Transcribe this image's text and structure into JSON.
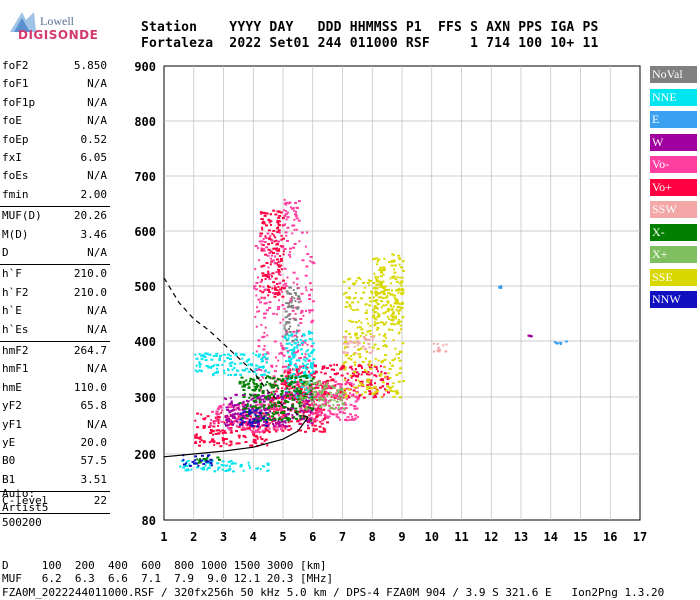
{
  "logo": {
    "line1": "Lowell",
    "line2": "DIGISONDE"
  },
  "header": {
    "line1": "Station    YYYY DAY   DDD HHMMSS P1  FFS S AXN PPS IGA PS",
    "line2": "Fortaleza  2022 Set01 244 011000 RSF     1 714 100 10+ 11"
  },
  "params": [
    {
      "name": "foF2",
      "value": "5.850"
    },
    {
      "name": "foF1",
      "value": "N/A"
    },
    {
      "name": "foF1p",
      "value": "N/A"
    },
    {
      "name": "foE",
      "value": "N/A"
    },
    {
      "name": "foEp",
      "value": "0.52"
    },
    {
      "name": "fxI",
      "value": "6.05"
    },
    {
      "name": "foEs",
      "value": "N/A"
    },
    {
      "name": "fmin",
      "value": "2.00"
    }
  ],
  "params2": [
    {
      "name": "MUF(D)",
      "value": "20.26"
    },
    {
      "name": "M(D)",
      "value": "3.46"
    },
    {
      "name": "D",
      "value": "N/A"
    }
  ],
  "params3": [
    {
      "name": "h`F",
      "value": "210.0"
    },
    {
      "name": "h`F2",
      "value": "210.0"
    },
    {
      "name": "h`E",
      "value": "N/A"
    },
    {
      "name": "h`Es",
      "value": "N/A"
    }
  ],
  "params4": [
    {
      "name": "hmF2",
      "value": "264.7"
    },
    {
      "name": "hmF1",
      "value": "N/A"
    },
    {
      "name": "hmE",
      "value": "110.0"
    },
    {
      "name": "yF2",
      "value": "65.8"
    },
    {
      "name": "yF1",
      "value": "N/A"
    },
    {
      "name": "yE",
      "value": "20.0"
    },
    {
      "name": "B0",
      "value": "57.5"
    },
    {
      "name": "B1",
      "value": "3.51"
    }
  ],
  "clevel": {
    "name": "C-level",
    "value": "22"
  },
  "auto": {
    "l1": "Auto:",
    "l2": "Artist5",
    "l3": "500200"
  },
  "legend": [
    {
      "label": "NoVal",
      "color": "#808080"
    },
    {
      "label": "NNE",
      "color": "#00e5ee"
    },
    {
      "label": "E",
      "color": "#3aa0f0"
    },
    {
      "label": "W",
      "color": "#a000a0"
    },
    {
      "label": "Vo-",
      "color": "#ff3fa0"
    },
    {
      "label": "Vo+",
      "color": "#ff0040"
    },
    {
      "label": "SSW",
      "color": "#f4a7a7"
    },
    {
      "label": "X-",
      "color": "#007f00"
    },
    {
      "label": "X+",
      "color": "#7fbf5f"
    },
    {
      "label": "SSE",
      "color": "#d8d800"
    },
    {
      "label": "NNW",
      "color": "#1010c0"
    }
  ],
  "footer": {
    "line1": "D     100  200  400  600  800 1000 1500 3000 [km]",
    "line2": "MUF   6.2  6.3  6.6  7.1  7.9  9.0 12.1 20.3 [MHz]",
    "line3": "FZA0M_2022244011000.RSF / 320fx256h 50 kHz 5.0 km / DPS-4 FZA0M 904 / 3.9 S 321.6 E   Ion2Png 1.3.20"
  },
  "chart_data": {
    "type": "scatter",
    "x_ticks": [
      1,
      2,
      3,
      4,
      5,
      6,
      7,
      8,
      9,
      10,
      11,
      12,
      13,
      14,
      15,
      16,
      17
    ],
    "y_ticks": [
      80,
      200,
      300,
      400,
      500,
      600,
      700,
      800,
      900
    ],
    "xlim": [
      1,
      17
    ],
    "ylim": [
      80,
      900
    ],
    "grid": true,
    "legend_position": "right",
    "series": [
      {
        "name": "Vo+",
        "clusters": [
          [
            2.0,
            215,
            4.5,
            275
          ],
          [
            4.5,
            240,
            6.5,
            330
          ],
          [
            5.0,
            300,
            8.5,
            360
          ],
          [
            4.2,
            480,
            5.0,
            640
          ]
        ]
      },
      {
        "name": "Vo-",
        "clusters": [
          [
            2.5,
            240,
            5.0,
            290
          ],
          [
            4.0,
            300,
            6.0,
            600
          ],
          [
            5.5,
            260,
            7.5,
            330
          ],
          [
            5.0,
            600,
            5.5,
            660
          ]
        ]
      },
      {
        "name": "SSE",
        "clusters": [
          [
            7.0,
            300,
            9.0,
            520
          ],
          [
            8.0,
            430,
            9.0,
            560
          ]
        ]
      },
      {
        "name": "NNE",
        "clusters": [
          [
            1.5,
            170,
            4.5,
            190
          ],
          [
            2.0,
            340,
            4.5,
            380
          ],
          [
            5.0,
            300,
            6.0,
            420
          ]
        ]
      },
      {
        "name": "E",
        "clusters": [
          [
            13.9,
            395,
            14.6,
            402
          ],
          [
            12.2,
            498,
            12.3,
            503
          ]
        ]
      },
      {
        "name": "W",
        "clusters": [
          [
            3.0,
            250,
            6.0,
            310
          ],
          [
            13.2,
            410,
            13.3,
            412
          ]
        ]
      },
      {
        "name": "X-",
        "clusters": [
          [
            2.0,
            185,
            3.0,
            196
          ],
          [
            3.5,
            260,
            6.0,
            340
          ]
        ]
      },
      {
        "name": "X+",
        "clusters": [
          [
            5.5,
            280,
            7.0,
            330
          ]
        ]
      },
      {
        "name": "SSW",
        "clusters": [
          [
            7.0,
            380,
            8.0,
            410
          ],
          [
            10.0,
            380,
            10.5,
            400
          ]
        ]
      },
      {
        "name": "NNW",
        "clusters": [
          [
            1.6,
            180,
            2.6,
            200
          ],
          [
            3.5,
            250,
            4.5,
            280
          ]
        ]
      },
      {
        "name": "NoVal",
        "clusters": [
          [
            5.0,
            400,
            5.5,
            500
          ]
        ]
      }
    ],
    "profile_line": [
      [
        1.0,
        195
      ],
      [
        2.0,
        200
      ],
      [
        3.0,
        205
      ],
      [
        4.0,
        212
      ],
      [
        5.0,
        226
      ],
      [
        5.5,
        240
      ],
      [
        5.85,
        265
      ]
    ],
    "dashed_line": [
      [
        1.0,
        515
      ],
      [
        1.5,
        470
      ],
      [
        2.0,
        440
      ],
      [
        2.5,
        420
      ],
      [
        3.0,
        395
      ],
      [
        3.5,
        370
      ],
      [
        4.0,
        345
      ],
      [
        4.5,
        310
      ],
      [
        5.0,
        285
      ],
      [
        5.5,
        270
      ],
      [
        5.85,
        265
      ]
    ]
  }
}
